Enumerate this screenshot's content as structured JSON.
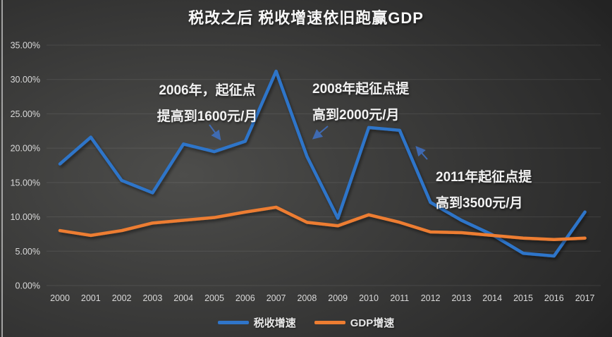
{
  "title": "税改之后 税收增速依旧跑赢GDP",
  "annotations": [
    {
      "line1": "2006年，起征点",
      "line2": "提高到1600元/月",
      "arrow_direction": "down-right"
    },
    {
      "line1": "2008年起征点提",
      "line2": "高到2000元/月",
      "arrow_direction": "down-left"
    },
    {
      "line1": "2011年起征点提",
      "line2": "高到3500元/月",
      "arrow_direction": "up-left"
    }
  ],
  "y_axis_labels": [
    "35.00%",
    "30.00%",
    "25.00%",
    "20.00%",
    "15.00%",
    "10.00%",
    "5.00%",
    "0.00%"
  ],
  "x_axis_labels": [
    "2000",
    "2001",
    "2002",
    "2003",
    "2004",
    "2005",
    "2006",
    "2007",
    "2008",
    "2009",
    "2010",
    "2011",
    "2012",
    "2013",
    "2014",
    "2015",
    "2016",
    "2017"
  ],
  "legend": {
    "items": [
      {
        "label": "税收增速",
        "color": "#2f75c9"
      },
      {
        "label": "GDP增速",
        "color": "#ed7d31"
      }
    ]
  },
  "colors": {
    "tax_line": "#2f75c9",
    "gdp_line": "#ed7d31",
    "grid": "rgba(255,255,255,0.09)",
    "axis_text": "#d9d9d9",
    "title_text": "#f7f7f7",
    "arrow": "#3f6fbe"
  },
  "chart_data": {
    "type": "line",
    "title": "税改之后 税收增速依旧跑赢GDP",
    "x": [
      2000,
      2001,
      2002,
      2003,
      2004,
      2005,
      2006,
      2007,
      2008,
      2009,
      2010,
      2011,
      2012,
      2013,
      2014,
      2015,
      2016,
      2017
    ],
    "series": [
      {
        "name": "税收增速",
        "color": "#2f75c9",
        "values": [
          17.7,
          21.6,
          15.3,
          13.5,
          20.6,
          19.5,
          21.0,
          31.2,
          18.8,
          9.8,
          23.0,
          22.6,
          12.1,
          9.5,
          7.4,
          4.7,
          4.3,
          10.7
        ]
      },
      {
        "name": "GDP增速",
        "color": "#ed7d31",
        "values": [
          8.0,
          7.3,
          8.0,
          9.1,
          9.5,
          9.9,
          10.7,
          11.4,
          9.2,
          8.7,
          10.3,
          9.2,
          7.8,
          7.7,
          7.3,
          6.9,
          6.7,
          6.9
        ]
      }
    ],
    "ylim": [
      0,
      35
    ],
    "ytick_step": 5,
    "ytick_format": "0.00%",
    "grid": "horizontal",
    "legend_position": "bottom-center",
    "background": "dark-gray-gradient"
  }
}
